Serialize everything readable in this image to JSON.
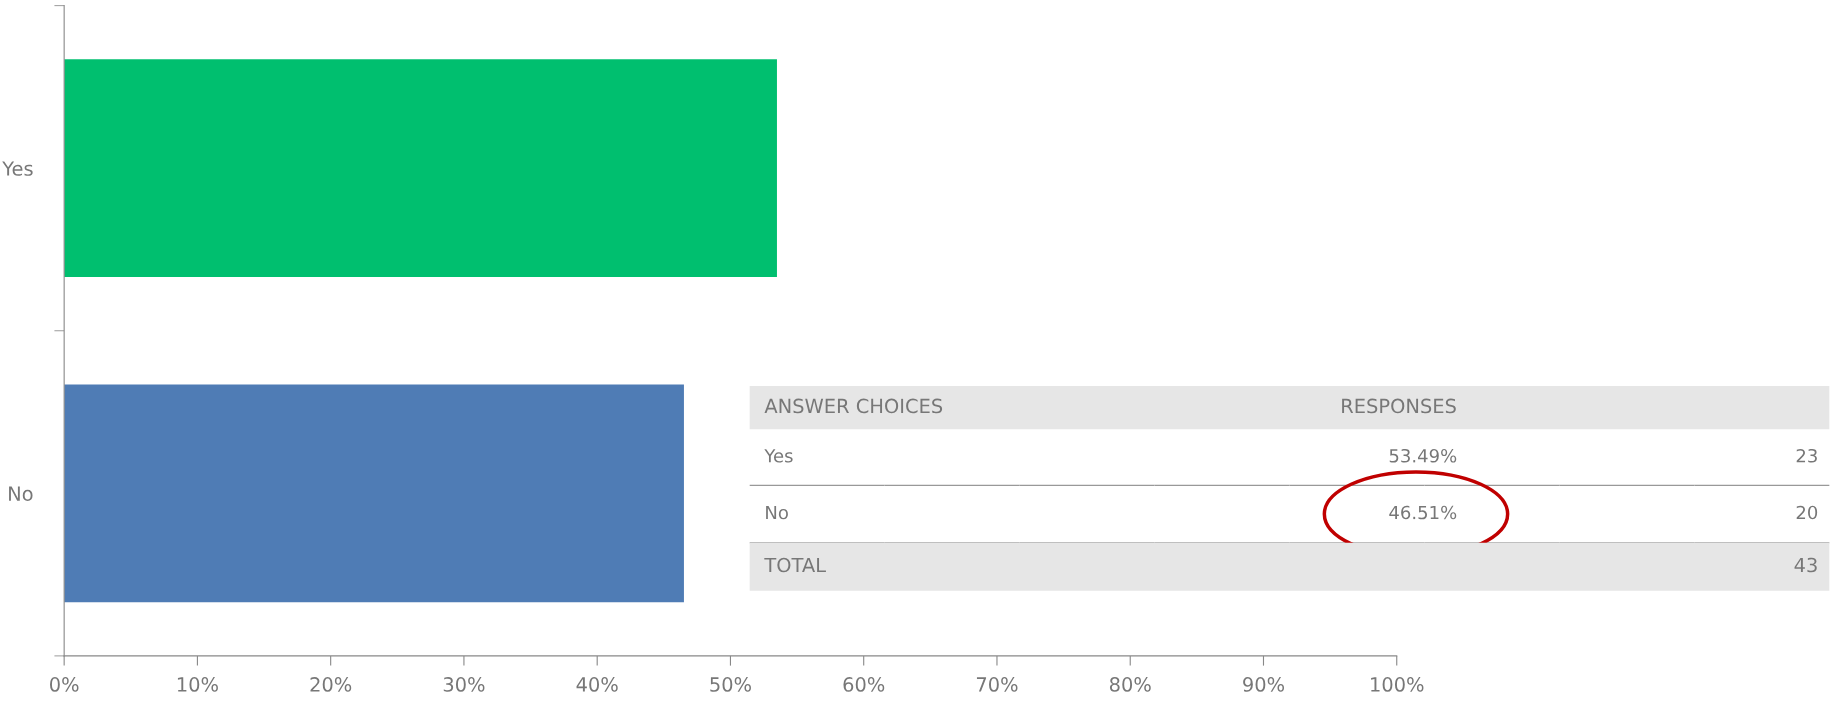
{
  "chart_data": {
    "type": "bar",
    "orientation": "horizontal",
    "categories": [
      "Yes",
      "No"
    ],
    "values": [
      53.49,
      46.51
    ],
    "colors": [
      "#00bf6f",
      "#4f7cb5"
    ],
    "value_labels": [
      "53.49%",
      "46.51%"
    ],
    "xlim": [
      0,
      100
    ],
    "xticks": [
      {
        "value": 0,
        "label": "0%"
      },
      {
        "value": 10,
        "label": "10%"
      },
      {
        "value": 20,
        "label": "20%"
      },
      {
        "value": 30,
        "label": "30%"
      },
      {
        "value": 40,
        "label": "40%"
      },
      {
        "value": 50,
        "label": "50%"
      },
      {
        "value": 60,
        "label": "60%"
      },
      {
        "value": 70,
        "label": "70%"
      },
      {
        "value": 80,
        "label": "80%"
      },
      {
        "value": 90,
        "label": "90%"
      },
      {
        "value": 100,
        "label": "100%"
      }
    ],
    "grid": false,
    "annotations": [
      "ANSWER CHOICES",
      "RESPONSES",
      "23",
      "20",
      "TOTAL",
      "43"
    ]
  }
}
